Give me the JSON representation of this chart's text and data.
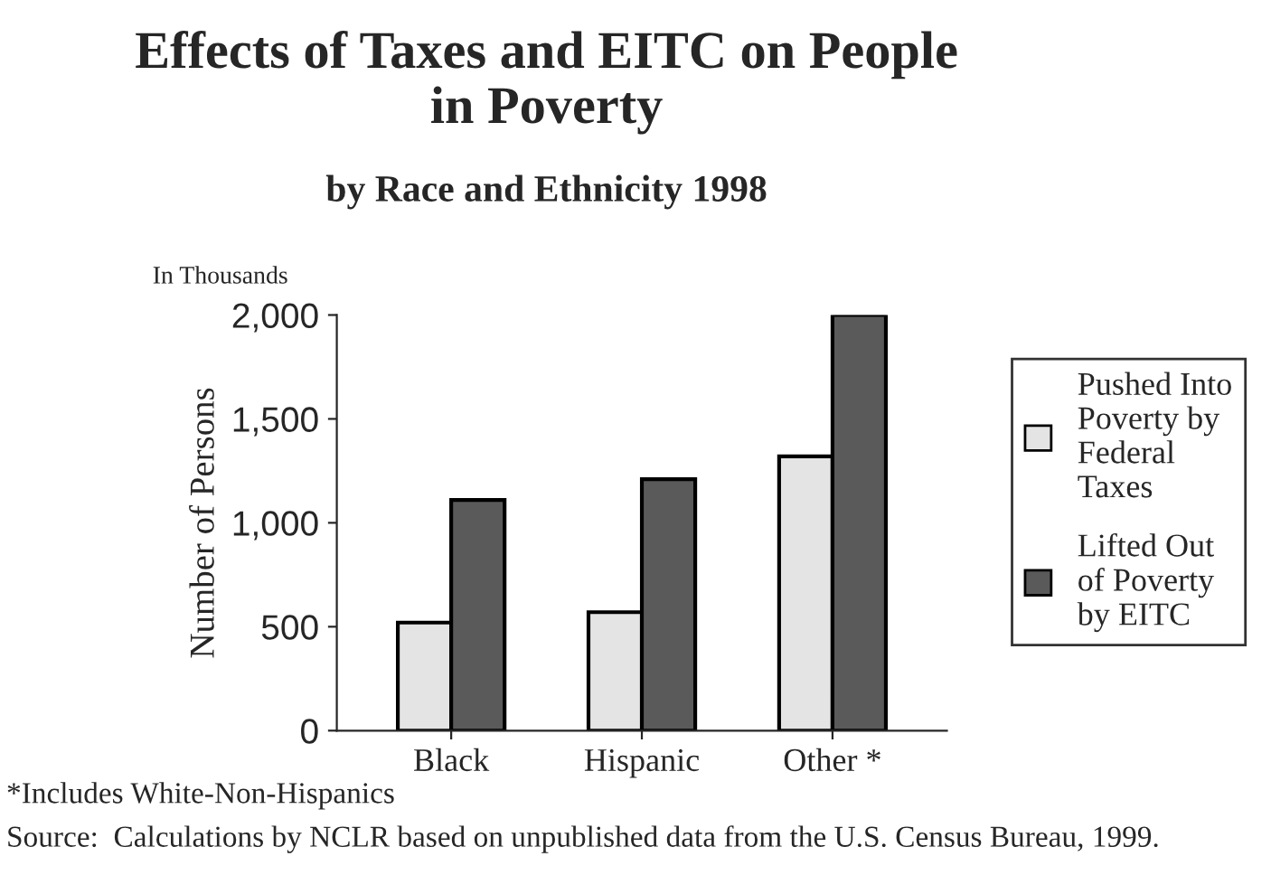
{
  "chart_data": {
    "type": "bar",
    "title": "Effects of Taxes and EITC on People\nin Poverty",
    "subtitle": "by Race and Ethnicity 1998",
    "ylabel": "Number of Persons",
    "categories": [
      "Black",
      "Hispanic",
      "Other *"
    ],
    "series": [
      {
        "name": "Pushed Into\nPoverty by\nFederal\nTaxes",
        "color": "#e4e4e4",
        "values": [
          520,
          570,
          1320
        ]
      },
      {
        "name": "Lifted Out\nof Poverty\nby EITC",
        "color": "#5a5a5a",
        "values": [
          1110,
          1210,
          2000
        ]
      }
    ],
    "ylim": [
      0,
      2000
    ],
    "yticks": [
      0,
      500,
      {
        "value": 1000,
        "label": "1,000"
      },
      {
        "value": 1500,
        "label": "1,500"
      },
      {
        "value": 2000,
        "label": "2,000"
      }
    ],
    "grid": false,
    "legend": "right",
    "annotations": [
      "In Thousands",
      "*Includes White-Non-Hispanics",
      "Source:  Calculations by NCLR based on unpublished data from the U.S. Census Bureau, 1999."
    ]
  }
}
